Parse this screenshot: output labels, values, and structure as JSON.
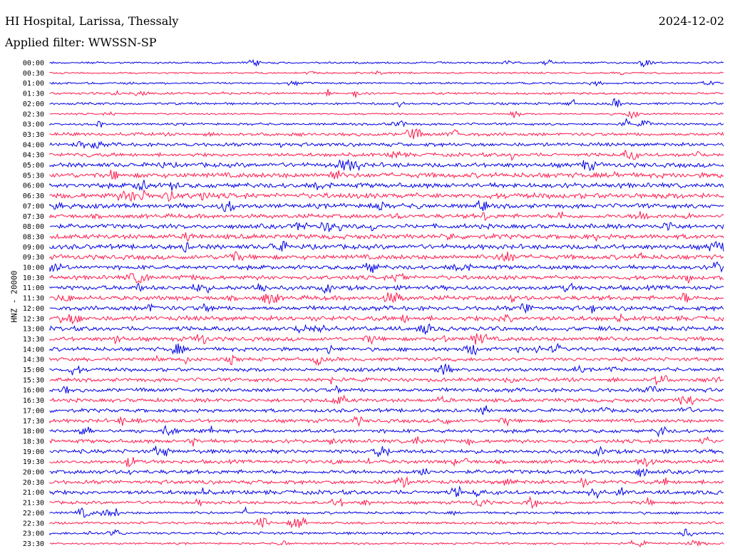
{
  "header": {
    "station": "HI Hospital, Larissa, Thessaly",
    "date": "2024-12-02",
    "filter": "Applied filter: WWSSN-SP"
  },
  "chart_data": {
    "type": "line",
    "title": "HI Hospital, Larissa, Thessaly",
    "subtitle": "Applied filter: WWSSN-SP",
    "ylabel": "HNZ - 20000",
    "xlabel": "",
    "colors": {
      "even_rows": "#0000e6",
      "odd_rows": "#ff1a4d"
    },
    "rows": [
      {
        "time": "00:00",
        "level": 0.1
      },
      {
        "time": "00:30",
        "level": 0.05
      },
      {
        "time": "01:00",
        "level": 0.1
      },
      {
        "time": "01:30",
        "level": 0.15
      },
      {
        "time": "02:00",
        "level": 0.15
      },
      {
        "time": "02:30",
        "level": 0.05
      },
      {
        "time": "03:00",
        "level": 0.15
      },
      {
        "time": "03:30",
        "level": 0.35
      },
      {
        "time": "04:00",
        "level": 0.4
      },
      {
        "time": "04:30",
        "level": 0.4
      },
      {
        "time": "05:00",
        "level": 0.55
      },
      {
        "time": "05:30",
        "level": 0.65
      },
      {
        "time": "06:00",
        "level": 0.6
      },
      {
        "time": "06:30",
        "level": 0.7
      },
      {
        "time": "07:00",
        "level": 0.55
      },
      {
        "time": "07:30",
        "level": 0.5
      },
      {
        "time": "08:00",
        "level": 0.55
      },
      {
        "time": "08:30",
        "level": 0.6
      },
      {
        "time": "09:00",
        "level": 0.6
      },
      {
        "time": "09:30",
        "level": 0.6
      },
      {
        "time": "10:00",
        "level": 0.5
      },
      {
        "time": "10:30",
        "level": 0.5
      },
      {
        "time": "11:00",
        "level": 0.55
      },
      {
        "time": "11:30",
        "level": 0.55
      },
      {
        "time": "12:00",
        "level": 0.55
      },
      {
        "time": "12:30",
        "level": 0.6
      },
      {
        "time": "13:00",
        "level": 0.55
      },
      {
        "time": "13:30",
        "level": 0.5
      },
      {
        "time": "14:00",
        "level": 0.45
      },
      {
        "time": "14:30",
        "level": 0.4
      },
      {
        "time": "15:00",
        "level": 0.4
      },
      {
        "time": "15:30",
        "level": 0.4
      },
      {
        "time": "16:00",
        "level": 0.45
      },
      {
        "time": "16:30",
        "level": 0.4
      },
      {
        "time": "17:00",
        "level": 0.4
      },
      {
        "time": "17:30",
        "level": 0.4
      },
      {
        "time": "18:00",
        "level": 0.4
      },
      {
        "time": "18:30",
        "level": 0.4
      },
      {
        "time": "19:00",
        "level": 0.45
      },
      {
        "time": "19:30",
        "level": 0.4
      },
      {
        "time": "20:00",
        "level": 0.45
      },
      {
        "time": "20:30",
        "level": 0.45
      },
      {
        "time": "21:00",
        "level": 0.5
      },
      {
        "time": "21:30",
        "level": 0.3
      },
      {
        "time": "22:00",
        "level": 0.2
      },
      {
        "time": "22:30",
        "level": 0.2
      },
      {
        "time": "23:00",
        "level": 0.2
      },
      {
        "time": "23:30",
        "level": 0.1
      }
    ]
  }
}
